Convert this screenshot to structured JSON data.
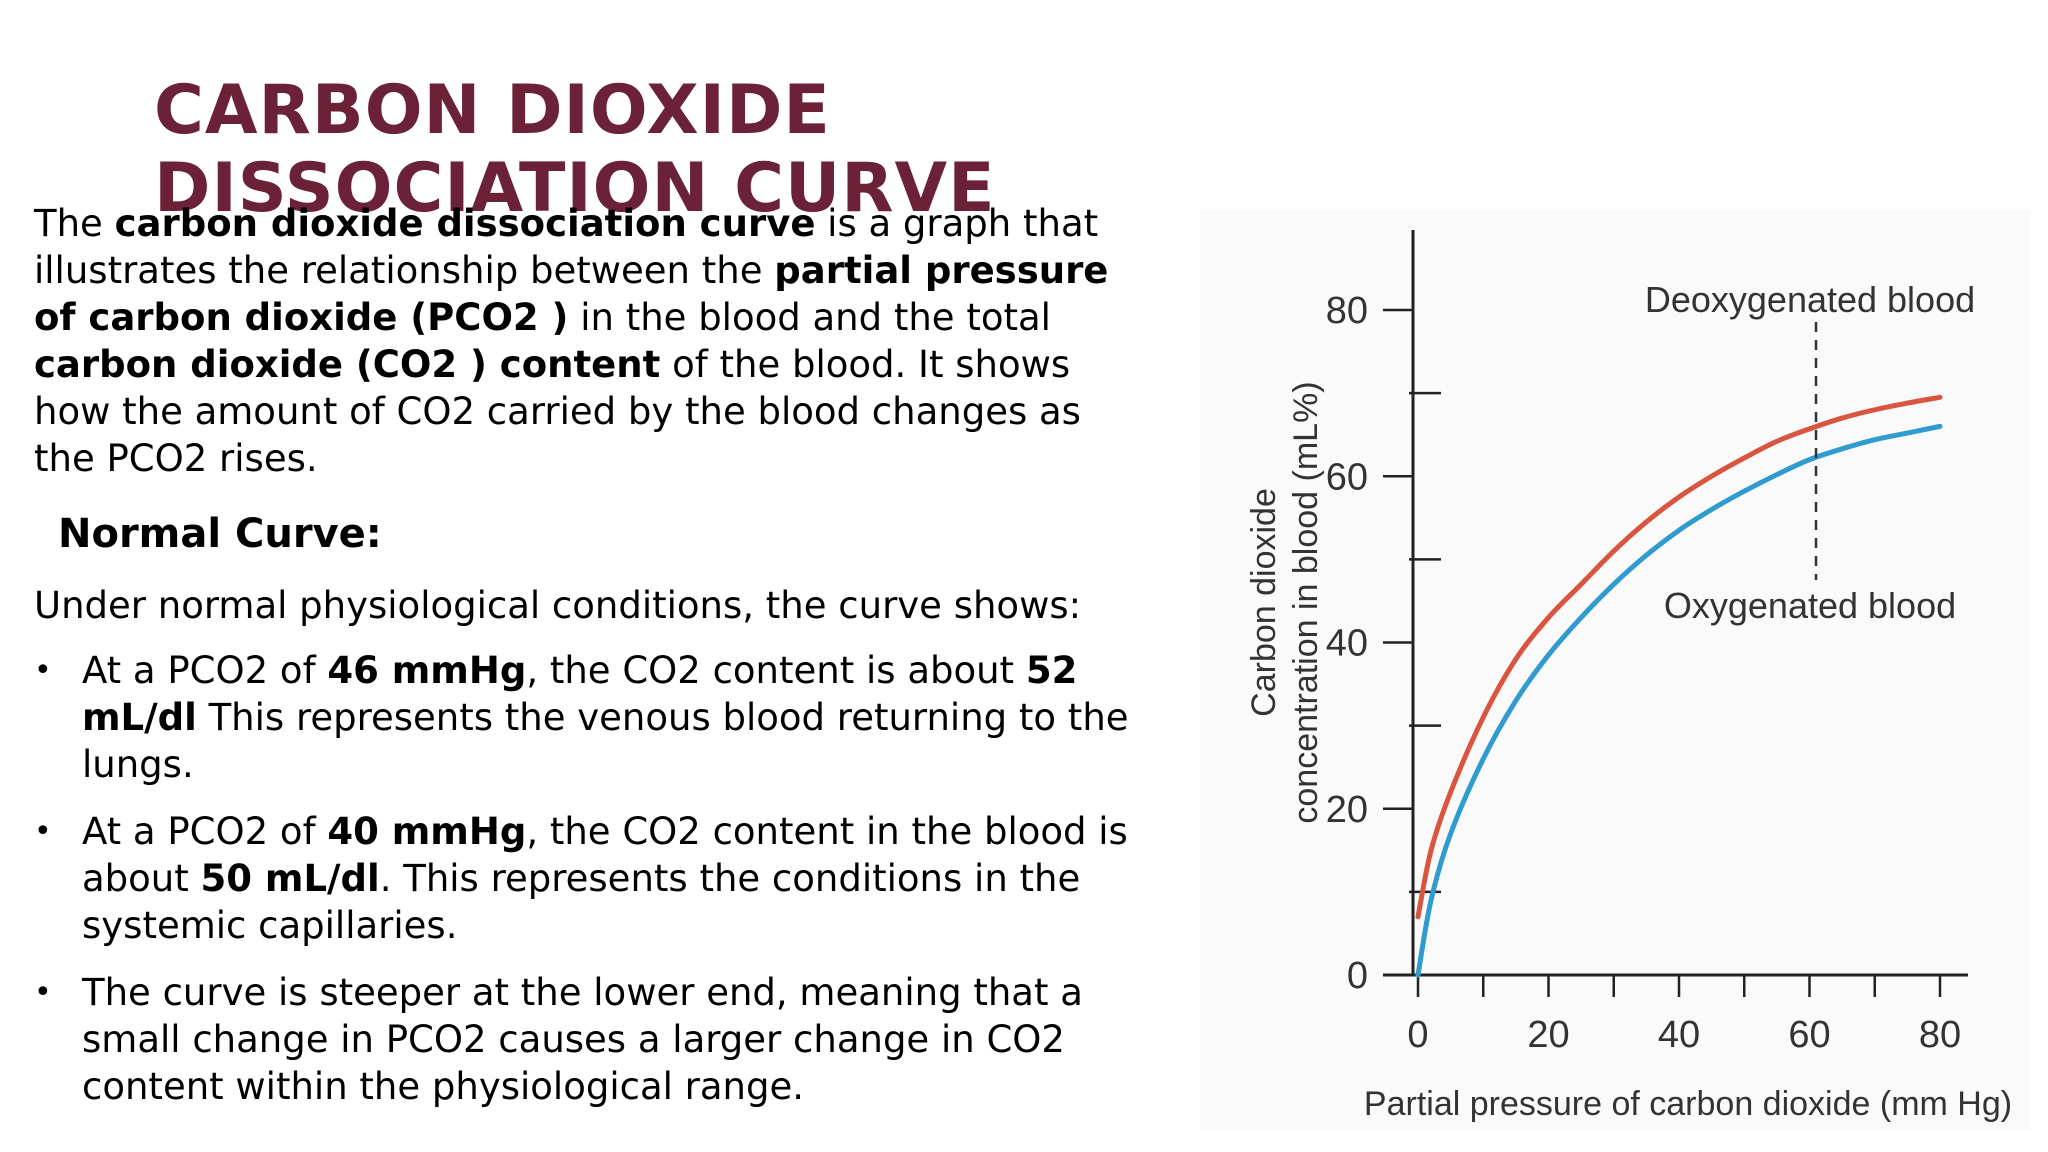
{
  "slide": {
    "title": "CARBON DIOXIDE DISSOCIATION CURVE",
    "intro": [
      {
        "t": "The ",
        "b": false
      },
      {
        "t": "carbon dioxide dissociation curve",
        "b": true
      },
      {
        "t": " is a graph that illustrates the relationship between the ",
        "b": false
      },
      {
        "t": "partial pressure of carbon dioxide (PCO2 )",
        "b": true
      },
      {
        "t": " in the blood and the total ",
        "b": false
      },
      {
        "t": "carbon dioxide (CO2 ) content",
        "b": true
      },
      {
        "t": " of the blood. It shows how the amount of CO2  carried by the blood changes as the PCO2  rises.",
        "b": false
      }
    ],
    "subheading": "Normal Curve:",
    "lead": "Under normal physiological conditions, the curve shows:",
    "bullet_symbol": "•",
    "bullets": [
      [
        {
          "t": "At a PCO2  of ",
          "b": false
        },
        {
          "t": "46 mmHg",
          "b": true
        },
        {
          "t": ", the CO2  content is about ",
          "b": false
        },
        {
          "t": "52 mL/dl",
          "b": true
        },
        {
          "t": " This represents the venous blood returning to the lungs.",
          "b": false
        }
      ],
      [
        {
          "t": "At a PCO2  of ",
          "b": false
        },
        {
          "t": "40 mmHg",
          "b": true
        },
        {
          "t": ", the CO2  content in the blood is about ",
          "b": false
        },
        {
          "t": "50 mL/dl",
          "b": true
        },
        {
          "t": ". This represents the conditions in the systemic capillaries.",
          "b": false
        }
      ],
      [
        {
          "t": "The curve is steeper at the lower end, meaning that a small change in PCO2  causes a larger change in CO2  content within the physiological range.",
          "b": false
        }
      ]
    ]
  },
  "chart_data": {
    "type": "line",
    "title": "",
    "xlabel": "Partial pressure of carbon dioxide (mm Hg)",
    "ylabel_lines": [
      "Carbon dioxide",
      "concentration in blood (mL%)"
    ],
    "xlim": [
      0,
      80
    ],
    "ylim": [
      0,
      80
    ],
    "xticks_labeled": [
      0,
      20,
      40,
      60,
      80
    ],
    "xticks_minor": [
      10,
      30,
      50,
      70
    ],
    "yticks_labeled": [
      0,
      20,
      40,
      60,
      80
    ],
    "yticks_minor": [
      10,
      30,
      50,
      70
    ],
    "series": [
      {
        "name": "Deoxygenated blood",
        "color": "#d9553f",
        "x": [
          0,
          2,
          5,
          10,
          15,
          20,
          25,
          30,
          35,
          40,
          45,
          50,
          55,
          60,
          65,
          70,
          75,
          80
        ],
        "y": [
          7,
          15,
          22,
          31,
          38,
          43,
          47,
          51,
          54.5,
          57.5,
          60,
          62.2,
          64.2,
          65.7,
          67,
          68,
          68.8,
          69.5
        ]
      },
      {
        "name": "Oxygenated blood",
        "color": "#2f9bcf",
        "x": [
          0,
          2,
          5,
          10,
          15,
          20,
          25,
          30,
          35,
          40,
          45,
          50,
          55,
          60,
          65,
          70,
          75,
          80
        ],
        "y": [
          0,
          9,
          17,
          26,
          33,
          38.5,
          43,
          47,
          50.5,
          53.5,
          56,
          58.2,
          60.2,
          62,
          63.3,
          64.4,
          65.2,
          66
        ]
      }
    ],
    "marker_x": 61,
    "annotations": {
      "top": "Deoxygenated blood",
      "bottom": "Oxygenated blood"
    }
  }
}
